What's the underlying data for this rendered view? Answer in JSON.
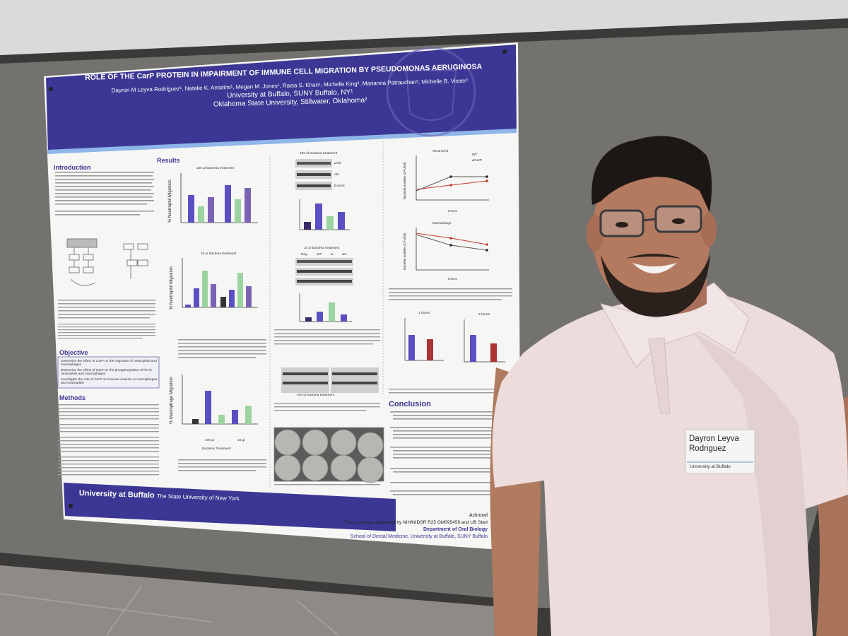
{
  "poster": {
    "title": "ROLE OF THE CarP PROTEIN IN IMPAIRMENT OF IMMUNE CELL MIGRATION BY PSEUDOMONAS AERUGINOSA",
    "authors_line1": "Dayron M Leyva Rodriguez¹, Natalie K. Anselmi¹, Megan M. Jones¹, Raisa S. Khan¹, Michelle King², Marianna Patrauchan², Michelle B. Visser¹",
    "affiliation1": "University at Buffalo, SUNY Buffalo, NY¹",
    "affiliation2": "Oklahoma State University, Stillwater, Oklahoma²",
    "sections": {
      "introduction": "Introduction",
      "objective": "Objective",
      "methods": "Methods",
      "results": "Results",
      "conclusion": "Conclusion"
    },
    "objective_items": [
      "Determine the effect of CarP on the migration of neutrophils and macrophages",
      "Determine the effect of CarP on the phosphorylation of Akt in neutrophils and macrophages",
      "Investigate the role of CarP on immune evasion in macrophages and neutrophils"
    ],
    "panel_titles": {
      "a1": "100 μl bacteria treatment",
      "b1": "10 μl bacteria treatment",
      "macro": "Bacteria Treatment",
      "blot1": "100 ul bacteria treatment",
      "blot2": "10 ul bacteria treatment",
      "blot3": "100 ul bacteria treatment",
      "neutrophil": "Neutrophil",
      "macrophage": "Macrophage",
      "h1": "1 hours",
      "h3": "3 hours",
      "hours": "Hours"
    },
    "y_labels": {
      "neut_migration": "% Neutrophil Migration",
      "macro_migration": "% Macrophage Migration",
      "bacteria_number": "Bacteria number (CFU/ml)"
    },
    "blot_labels": [
      "pAkt",
      "Akt",
      "β-actin"
    ],
    "lane_labels": [
      "Neg",
      "WT",
      "Δ",
      "ΔC"
    ],
    "legend": [
      "WT",
      "ΔCarP"
    ],
    "macro_ticks": [
      "100 μl",
      "10 μl"
    ],
    "footer_institution": "University at Buffalo",
    "footer_sub": "The State University of New York",
    "ack_lines": [
      "Acknowl",
      "This work was supported by NIH/NIDSR R25 GM095459 and UB Start",
      "Department of Oral Biology",
      "School of Dental Medicine, University at Buffalo, SUNY Buffalo"
    ]
  },
  "name_badge": {
    "name": "Dayron Leyva Rodriguez",
    "org": "University at Buffalo"
  },
  "colors": {
    "poster_blue": "#3b3794",
    "board_gray": "#6f6d6a",
    "shirt_pink": "#eddcdc",
    "floor": "#8a8682"
  }
}
